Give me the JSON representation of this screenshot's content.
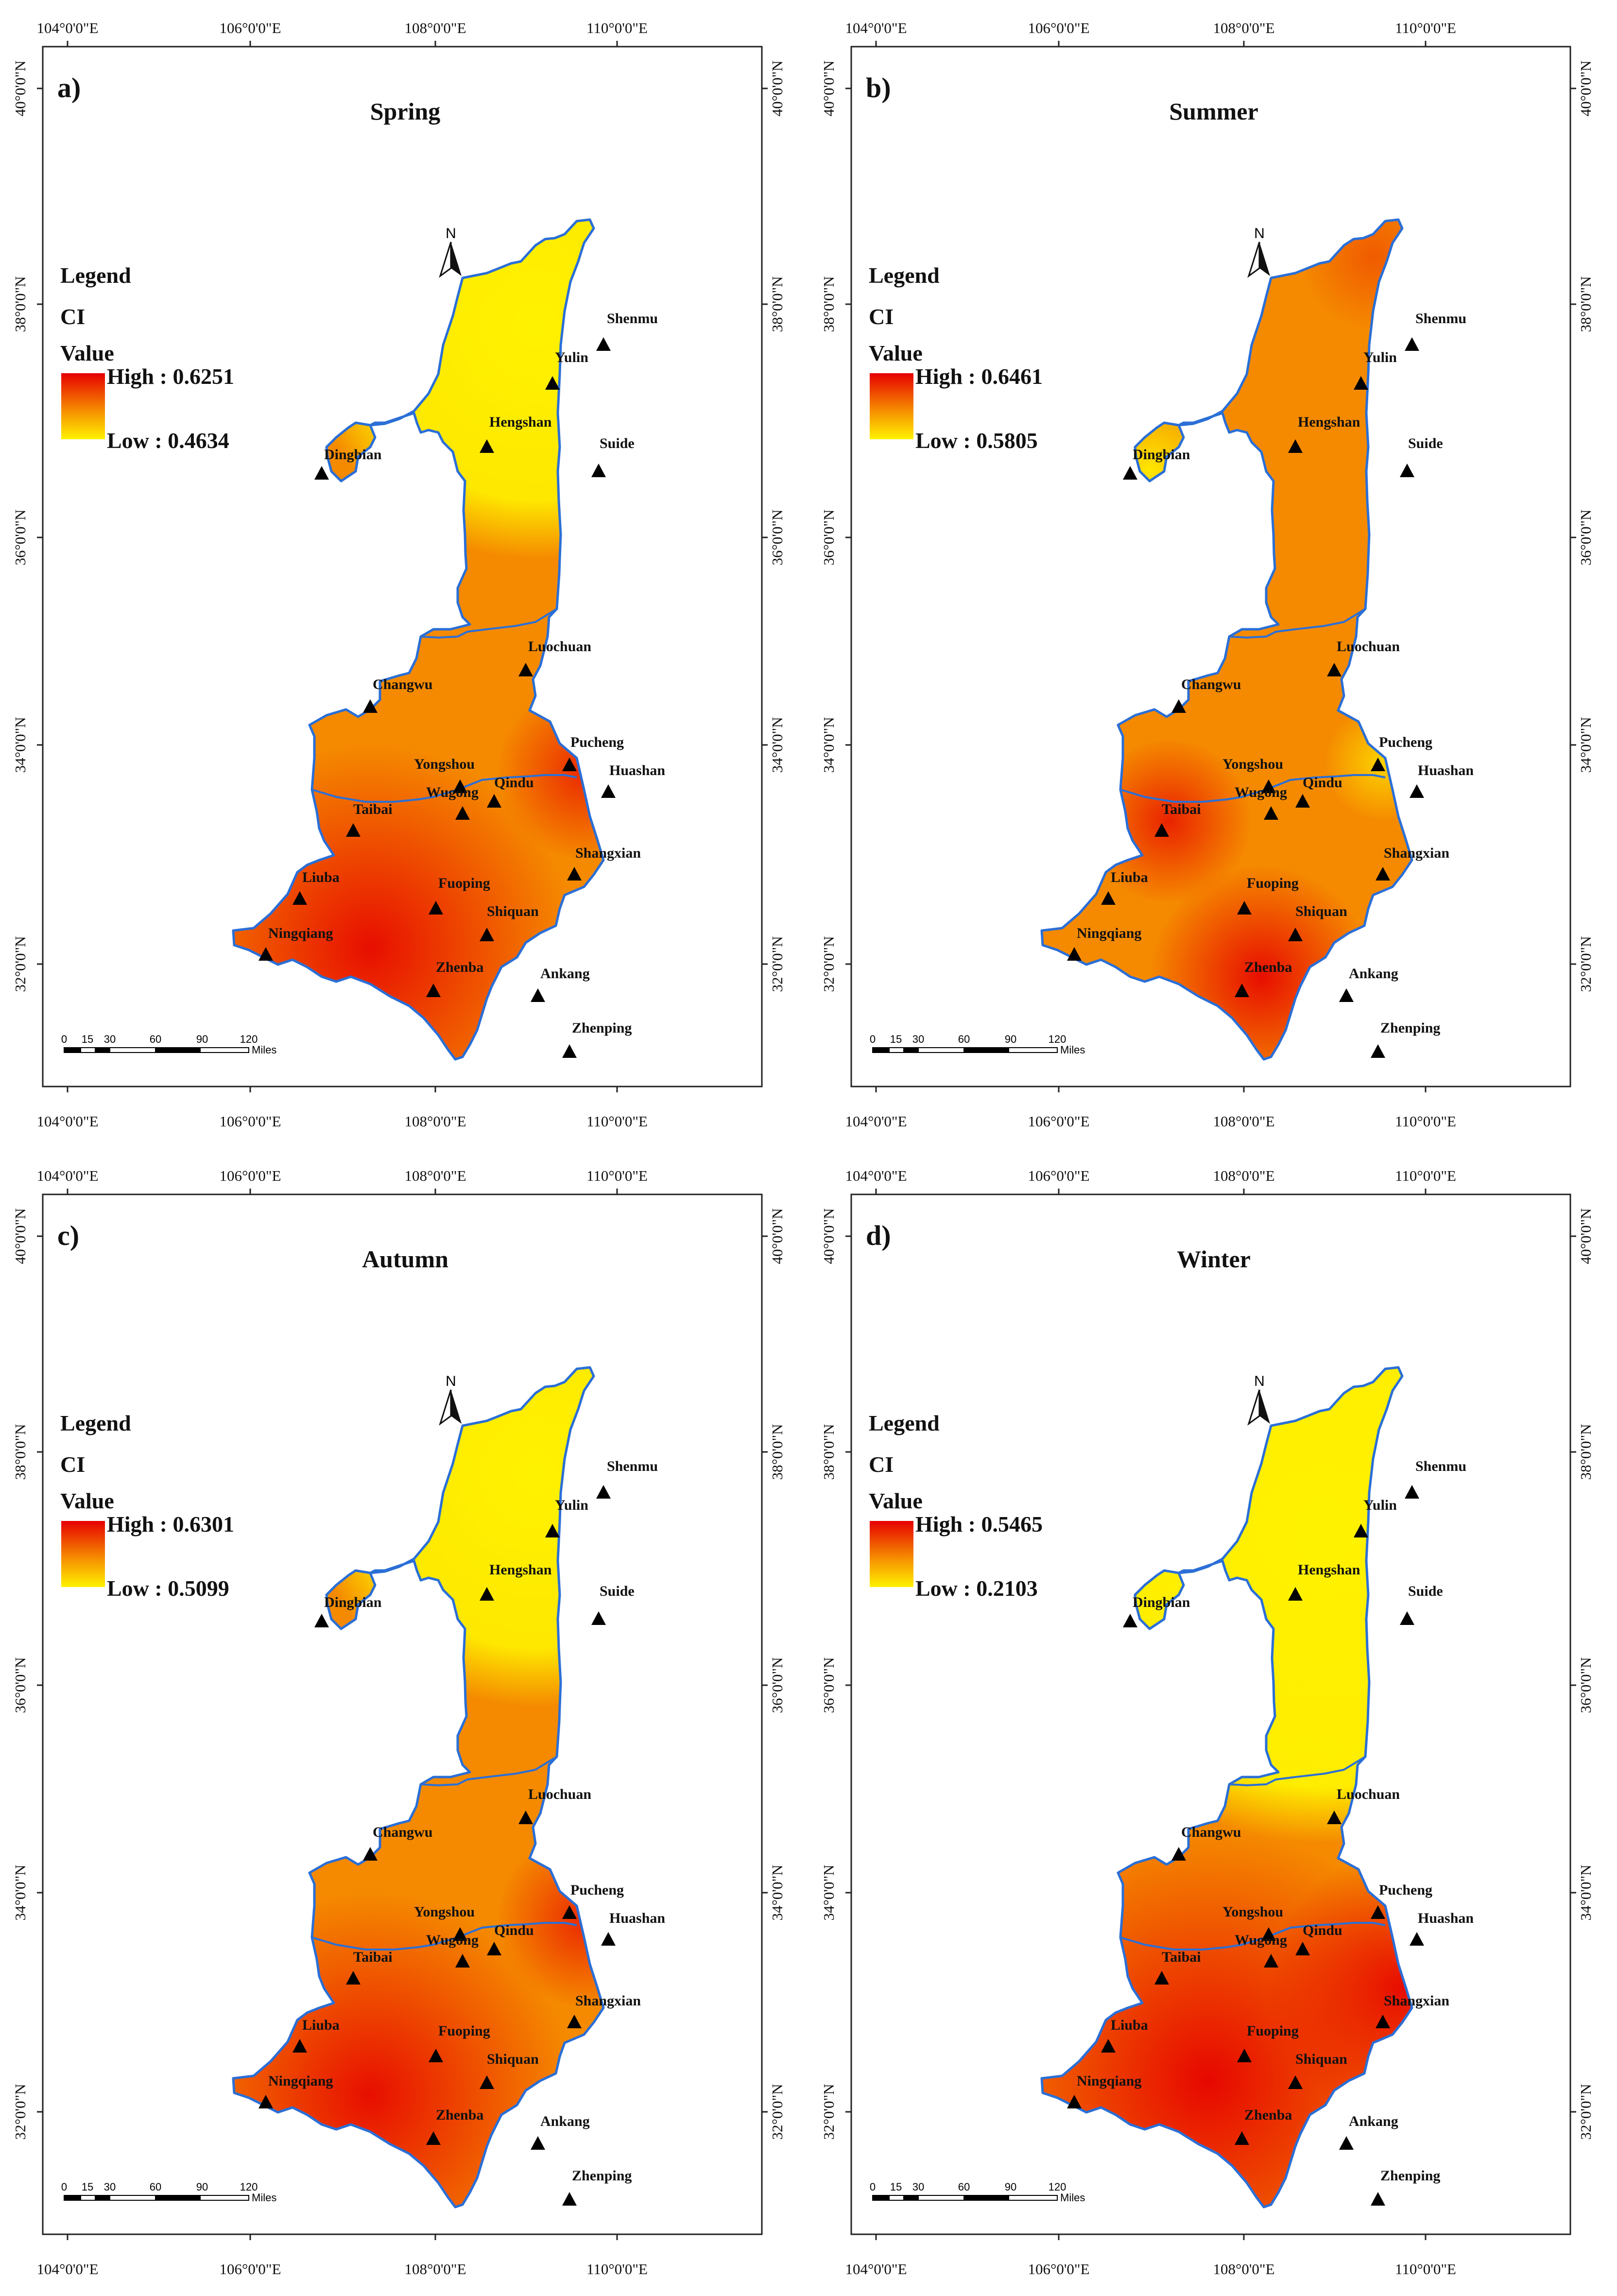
{
  "coordinate_ticks": {
    "longitude": [
      "104°0'0\"E",
      "106°0'0\"E",
      "108°0'0\"E",
      "110°0'0\"E"
    ],
    "latitude": [
      "40°0'0\"N",
      "38°0'0\"N",
      "36°0'0\"N",
      "34°0'0\"N",
      "32°0'0\"N"
    ]
  },
  "legend": {
    "heading": "Legend",
    "variable": "CI",
    "value_label": "Value"
  },
  "scale_bar": {
    "ticks": [
      "0",
      "15",
      "30",
      "60",
      "90",
      "120"
    ],
    "unit": "Miles"
  },
  "north_arrow_label": "N",
  "stations": [
    {
      "name": "Shenmu"
    },
    {
      "name": "Yulin"
    },
    {
      "name": "Hengshan"
    },
    {
      "name": "Suide"
    },
    {
      "name": "Dingbian"
    },
    {
      "name": "Luochuan"
    },
    {
      "name": "Changwu"
    },
    {
      "name": "Pucheng"
    },
    {
      "name": "Yongshou"
    },
    {
      "name": "Huashan"
    },
    {
      "name": "Qindu"
    },
    {
      "name": "Wugong"
    },
    {
      "name": "Taibai"
    },
    {
      "name": "Shangxian"
    },
    {
      "name": "Liuba"
    },
    {
      "name": "Fuoping"
    },
    {
      "name": "Shiquan"
    },
    {
      "name": "Ningqiang"
    },
    {
      "name": "Zhenba"
    },
    {
      "name": "Ankang"
    },
    {
      "name": "Zhenping"
    }
  ],
  "panels": [
    {
      "tag": "a)",
      "season": "Spring",
      "high_label": "High : 0.6251",
      "low_label": "Low : 0.4634",
      "high_value": 0.6251,
      "low_value": 0.4634,
      "pattern": "north-low"
    },
    {
      "tag": "b)",
      "season": "Summer",
      "high_label": "High : 0.6461",
      "low_label": "Low : 0.5805",
      "high_value": 0.6461,
      "low_value": 0.5805,
      "pattern": "mixed"
    },
    {
      "tag": "c)",
      "season": "Autumn",
      "high_label": "High : 0.6301",
      "low_label": "Low : 0.5099",
      "high_value": 0.6301,
      "low_value": 0.5099,
      "pattern": "north-low"
    },
    {
      "tag": "d)",
      "season": "Winter",
      "high_label": "High : 0.5465",
      "low_label": "Low : 0.2103",
      "high_value": 0.5465,
      "low_value": 0.2103,
      "pattern": "north-low-strong"
    }
  ],
  "colors": {
    "high": "#e60000",
    "mid": "#f58a00",
    "low": "#fff200",
    "boundary": "#2b6fd6",
    "frame": "#222222"
  }
}
